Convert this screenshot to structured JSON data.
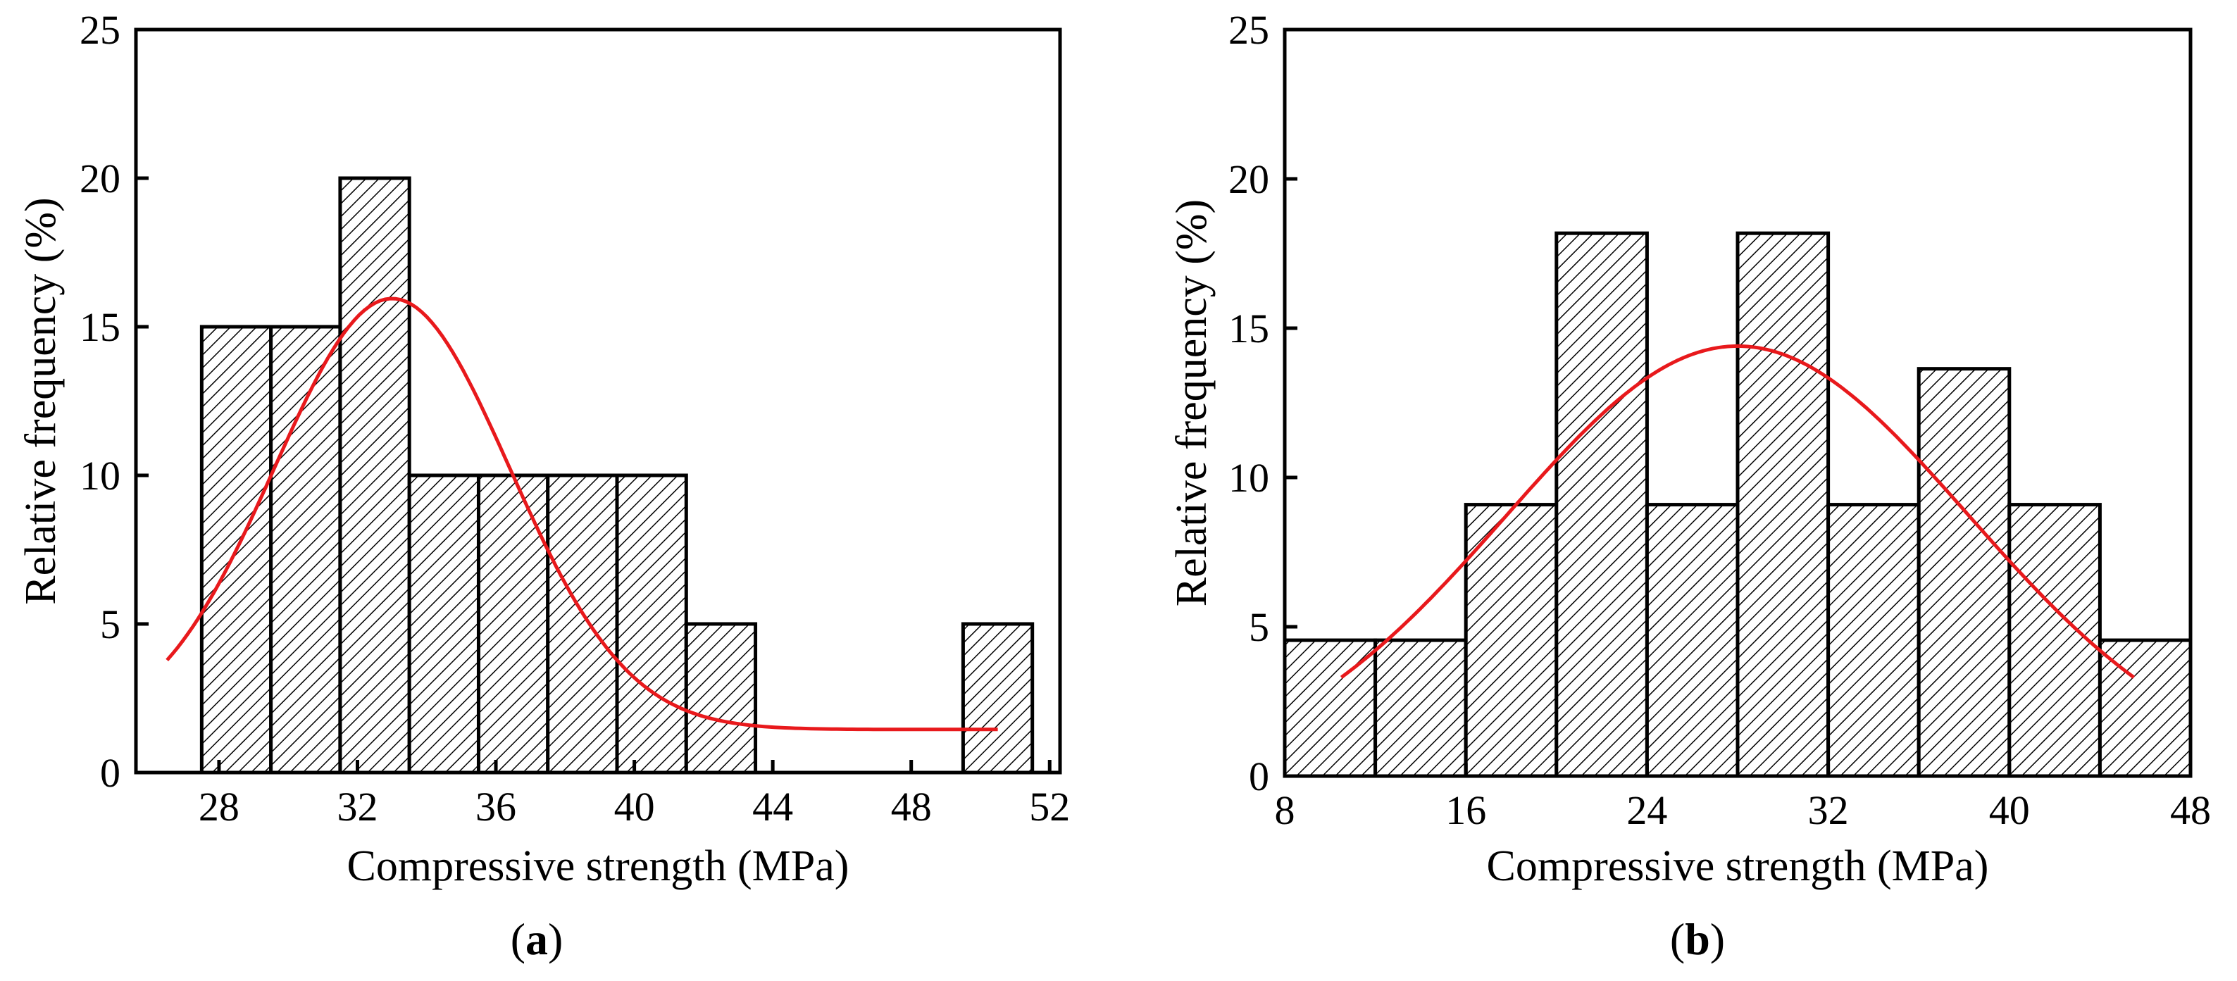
{
  "figure": {
    "colors": {
      "bar_fill": "#ffffff",
      "bar_stroke": "#000000",
      "hatch": "#000000",
      "fit_curve": "#e8191c",
      "axis": "#000000"
    }
  },
  "chart_data": [
    {
      "type": "bar",
      "panel_label": "a",
      "title": "",
      "xlabel": "Compressive strength (MPa)",
      "ylabel": "Relative frequency (%)",
      "xlim": [
        25.6,
        52.3
      ],
      "ylim": [
        0,
        25
      ],
      "xticks": [
        28,
        32,
        36,
        40,
        44,
        48,
        52
      ],
      "yticks": [
        0,
        5,
        10,
        15,
        20,
        25
      ],
      "bin_width": 2,
      "bars": [
        {
          "center": 28.5,
          "value": 15
        },
        {
          "center": 30.5,
          "value": 15
        },
        {
          "center": 32.5,
          "value": 20
        },
        {
          "center": 34.5,
          "value": 10
        },
        {
          "center": 36.5,
          "value": 10
        },
        {
          "center": 38.5,
          "value": 10
        },
        {
          "center": 40.5,
          "value": 10
        },
        {
          "center": 42.5,
          "value": 5
        },
        {
          "center": 50.5,
          "value": 5
        }
      ],
      "fit_curve": {
        "name": "Normal fit",
        "x_range": [
          26.5,
          50.5
        ],
        "mean": 33.0,
        "sd": 3.4,
        "amplitude": 14.5,
        "offset": 1.45
      }
    },
    {
      "type": "bar",
      "panel_label": "b",
      "title": "",
      "xlabel": "Compressive strength (MPa)",
      "ylabel": "Relative frequency (%)",
      "xlim": [
        8,
        48
      ],
      "ylim": [
        0,
        25
      ],
      "xticks": [
        8,
        16,
        24,
        32,
        40,
        48
      ],
      "yticks": [
        0,
        5,
        10,
        15,
        20,
        25
      ],
      "bin_width": 4,
      "bars": [
        {
          "center": 10,
          "value": 4.55
        },
        {
          "center": 14,
          "value": 4.55
        },
        {
          "center": 18,
          "value": 9.09
        },
        {
          "center": 22,
          "value": 18.18
        },
        {
          "center": 26,
          "value": 9.09
        },
        {
          "center": 30,
          "value": 18.18
        },
        {
          "center": 34,
          "value": 9.09
        },
        {
          "center": 38,
          "value": 13.64
        },
        {
          "center": 42,
          "value": 9.09
        },
        {
          "center": 46,
          "value": 4.55
        }
      ],
      "fit_curve": {
        "name": "Normal fit",
        "x_range": [
          10.5,
          45.5
        ],
        "mean": 28.0,
        "sd": 10.2,
        "amplitude": 14.4,
        "offset": 0.0
      }
    }
  ]
}
